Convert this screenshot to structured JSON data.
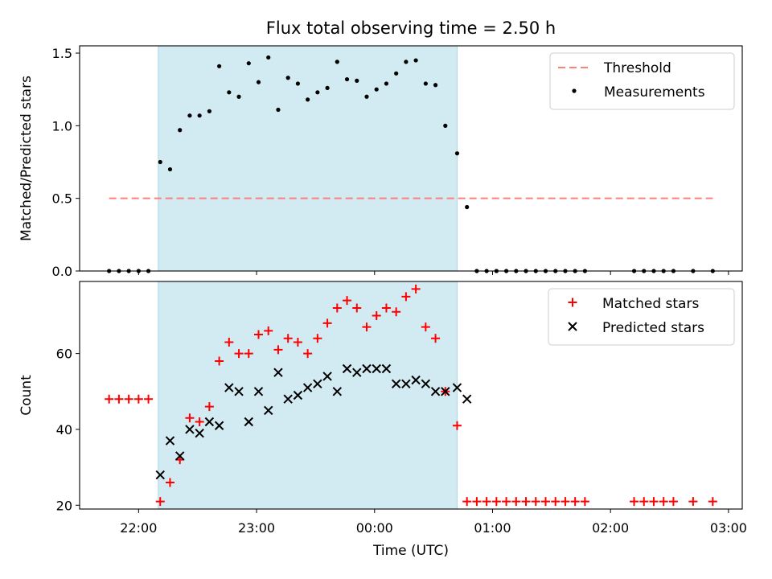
{
  "chart_data": {
    "type": "scatter",
    "title": "Flux total observing time = 2.50 h",
    "xlabel": "Time (UTC)",
    "x_ticks": [
      "22:00",
      "23:00",
      "00:00",
      "01:00",
      "02:00",
      "03:00"
    ],
    "x_range": [
      "21:30",
      "03:07"
    ],
    "shaded_interval": [
      "22:10",
      "00:42"
    ],
    "shade_color": "#add8e6",
    "panels": [
      {
        "ylabel": "Matched/Predicted stars",
        "ylim": [
          0,
          1.55
        ],
        "y_ticks": [
          0.0,
          0.5,
          1.0,
          1.5
        ],
        "y_tick_labels": [
          "0.0",
          "0.5",
          "1.0",
          "1.5"
        ],
        "legend_position": "top-right",
        "lines": [
          {
            "name": "Threshold",
            "color": "#ff7f7f",
            "style": "dashed",
            "x": [
              "21:45",
              "02:52"
            ],
            "y": [
              0.5,
              0.5
            ]
          }
        ],
        "series": [
          {
            "name": "Measurements",
            "marker": "dot",
            "color": "#000000",
            "points": [
              [
                "21:45",
                0.0
              ],
              [
                "21:50",
                0.0
              ],
              [
                "21:55",
                0.0
              ],
              [
                "22:00",
                0.0
              ],
              [
                "22:05",
                0.0
              ],
              [
                "22:11",
                0.75
              ],
              [
                "22:16",
                0.7
              ],
              [
                "22:21",
                0.97
              ],
              [
                "22:26",
                1.07
              ],
              [
                "22:31",
                1.07
              ],
              [
                "22:36",
                1.1
              ],
              [
                "22:41",
                1.41
              ],
              [
                "22:46",
                1.23
              ],
              [
                "22:51",
                1.2
              ],
              [
                "22:56",
                1.43
              ],
              [
                "23:01",
                1.3
              ],
              [
                "23:06",
                1.47
              ],
              [
                "23:11",
                1.11
              ],
              [
                "23:16",
                1.33
              ],
              [
                "23:21",
                1.29
              ],
              [
                "23:26",
                1.18
              ],
              [
                "23:31",
                1.23
              ],
              [
                "23:36",
                1.26
              ],
              [
                "23:41",
                1.44
              ],
              [
                "23:46",
                1.32
              ],
              [
                "23:51",
                1.31
              ],
              [
                "23:56",
                1.2
              ],
              [
                "00:01",
                1.25
              ],
              [
                "00:06",
                1.29
              ],
              [
                "00:11",
                1.36
              ],
              [
                "00:16",
                1.44
              ],
              [
                "00:21",
                1.45
              ],
              [
                "00:26",
                1.29
              ],
              [
                "00:31",
                1.28
              ],
              [
                "00:36",
                1.0
              ],
              [
                "00:42",
                0.81
              ],
              [
                "00:47",
                0.44
              ],
              [
                "00:52",
                0.0
              ],
              [
                "00:57",
                0.0
              ],
              [
                "01:02",
                0.0
              ],
              [
                "01:07",
                0.0
              ],
              [
                "01:12",
                0.0
              ],
              [
                "01:17",
                0.0
              ],
              [
                "01:22",
                0.0
              ],
              [
                "01:27",
                0.0
              ],
              [
                "01:32",
                0.0
              ],
              [
                "01:37",
                0.0
              ],
              [
                "01:42",
                0.0
              ],
              [
                "01:47",
                0.0
              ],
              [
                "02:12",
                0.0
              ],
              [
                "02:17",
                0.0
              ],
              [
                "02:22",
                0.0
              ],
              [
                "02:27",
                0.0
              ],
              [
                "02:32",
                0.0
              ],
              [
                "02:42",
                0.0
              ],
              [
                "02:52",
                0.0
              ]
            ]
          }
        ]
      },
      {
        "ylabel": "Count",
        "ylim": [
          19,
          79
        ],
        "y_ticks": [
          20,
          40,
          60
        ],
        "y_tick_labels": [
          "20",
          "40",
          "60"
        ],
        "legend_position": "top-right",
        "lines": [],
        "series": [
          {
            "name": "Matched stars",
            "marker": "plus",
            "color": "#ff0000",
            "points": [
              [
                "21:45",
                48
              ],
              [
                "21:50",
                48
              ],
              [
                "21:55",
                48
              ],
              [
                "22:00",
                48
              ],
              [
                "22:05",
                48
              ],
              [
                "22:11",
                21
              ],
              [
                "22:16",
                26
              ],
              [
                "22:21",
                32
              ],
              [
                "22:26",
                43
              ],
              [
                "22:31",
                42
              ],
              [
                "22:36",
                46
              ],
              [
                "22:41",
                58
              ],
              [
                "22:46",
                63
              ],
              [
                "22:51",
                60
              ],
              [
                "22:56",
                60
              ],
              [
                "23:01",
                65
              ],
              [
                "23:06",
                66
              ],
              [
                "23:11",
                61
              ],
              [
                "23:16",
                64
              ],
              [
                "23:21",
                63
              ],
              [
                "23:26",
                60
              ],
              [
                "23:31",
                64
              ],
              [
                "23:36",
                68
              ],
              [
                "23:41",
                72
              ],
              [
                "23:46",
                74
              ],
              [
                "23:51",
                72
              ],
              [
                "23:56",
                67
              ],
              [
                "00:01",
                70
              ],
              [
                "00:06",
                72
              ],
              [
                "00:11",
                71
              ],
              [
                "00:16",
                75
              ],
              [
                "00:21",
                77
              ],
              [
                "00:26",
                67
              ],
              [
                "00:31",
                64
              ],
              [
                "00:36",
                50
              ],
              [
                "00:42",
                41
              ],
              [
                "00:47",
                21
              ],
              [
                "00:52",
                21
              ],
              [
                "00:57",
                21
              ],
              [
                "01:02",
                21
              ],
              [
                "01:07",
                21
              ],
              [
                "01:12",
                21
              ],
              [
                "01:17",
                21
              ],
              [
                "01:22",
                21
              ],
              [
                "01:27",
                21
              ],
              [
                "01:32",
                21
              ],
              [
                "01:37",
                21
              ],
              [
                "01:42",
                21
              ],
              [
                "01:47",
                21
              ],
              [
                "02:12",
                21
              ],
              [
                "02:17",
                21
              ],
              [
                "02:22",
                21
              ],
              [
                "02:27",
                21
              ],
              [
                "02:32",
                21
              ],
              [
                "02:42",
                21
              ],
              [
                "02:52",
                21
              ]
            ]
          },
          {
            "name": "Predicted stars",
            "marker": "x",
            "color": "#000000",
            "points": [
              [
                "22:11",
                28
              ],
              [
                "22:16",
                37
              ],
              [
                "22:21",
                33
              ],
              [
                "22:26",
                40
              ],
              [
                "22:31",
                39
              ],
              [
                "22:36",
                42
              ],
              [
                "22:41",
                41
              ],
              [
                "22:46",
                51
              ],
              [
                "22:51",
                50
              ],
              [
                "22:56",
                42
              ],
              [
                "23:01",
                50
              ],
              [
                "23:06",
                45
              ],
              [
                "23:11",
                55
              ],
              [
                "23:16",
                48
              ],
              [
                "23:21",
                49
              ],
              [
                "23:26",
                51
              ],
              [
                "23:31",
                52
              ],
              [
                "23:36",
                54
              ],
              [
                "23:41",
                50
              ],
              [
                "23:46",
                56
              ],
              [
                "23:51",
                55
              ],
              [
                "23:56",
                56
              ],
              [
                "00:01",
                56
              ],
              [
                "00:06",
                56
              ],
              [
                "00:11",
                52
              ],
              [
                "00:16",
                52
              ],
              [
                "00:21",
                53
              ],
              [
                "00:26",
                52
              ],
              [
                "00:31",
                50
              ],
              [
                "00:36",
                50
              ],
              [
                "00:42",
                51
              ],
              [
                "00:47",
                48
              ]
            ]
          }
        ]
      }
    ]
  }
}
